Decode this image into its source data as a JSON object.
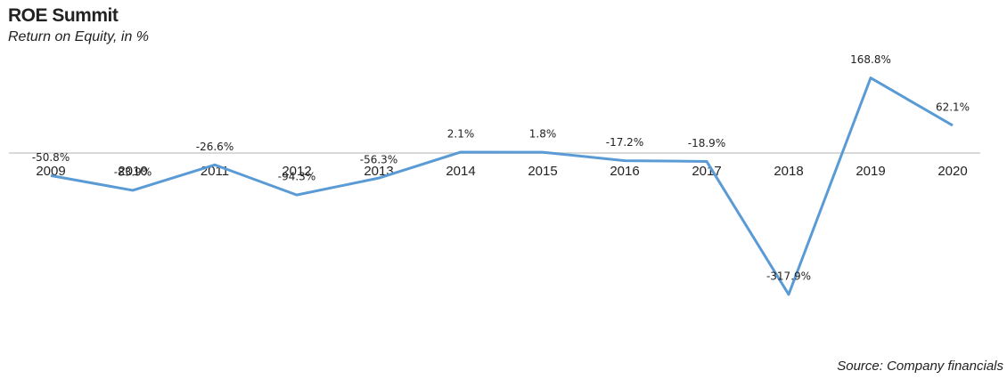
{
  "chart_data": {
    "type": "line",
    "title": "ROE Summit",
    "subtitle": "Return on Equity, in %",
    "source": "Source: Company financials",
    "categories": [
      "2009",
      "2010",
      "2011",
      "2012",
      "2013",
      "2014",
      "2015",
      "2016",
      "2017",
      "2018",
      "2019",
      "2020"
    ],
    "series": [
      {
        "name": "ROE",
        "color": "#5b9bd5",
        "values": [
          -50.8,
          -83.9,
          -26.6,
          -94.3,
          -56.3,
          2.1,
          1.8,
          -17.2,
          -18.9,
          -317.9,
          168.8,
          62.1
        ],
        "value_labels": [
          "-50.8%",
          "-83.9%",
          "-26.6%",
          "-94.3%",
          "-56.3%",
          "2.1%",
          "1.8%",
          "-17.2%",
          "-18.9%",
          "-317.9%",
          "168.8%",
          "62.1%"
        ]
      }
    ],
    "ylim": [
      -330,
      200
    ]
  }
}
